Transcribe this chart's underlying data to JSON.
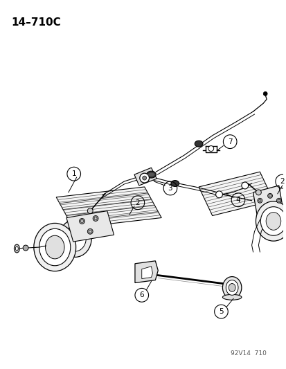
{
  "title_text": "14–710C",
  "watermark": "92V14  710",
  "background_color": "#ffffff",
  "line_color": "#000000",
  "fig_width": 4.14,
  "fig_height": 5.33,
  "dpi": 100,
  "title_fontsize": 11,
  "watermark_fontsize": 6.5,
  "label_fontsize": 8.5
}
